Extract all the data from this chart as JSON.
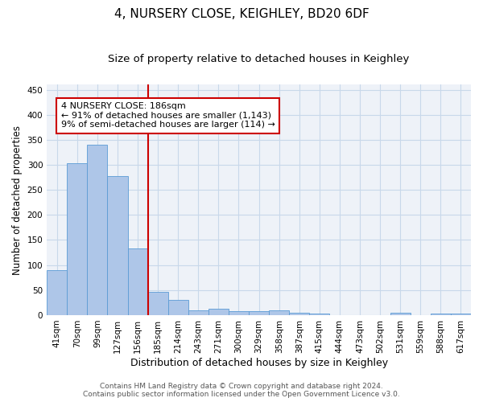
{
  "title": "4, NURSERY CLOSE, KEIGHLEY, BD20 6DF",
  "subtitle": "Size of property relative to detached houses in Keighley",
  "xlabel": "Distribution of detached houses by size in Keighley",
  "ylabel": "Number of detached properties",
  "categories": [
    "41sqm",
    "70sqm",
    "99sqm",
    "127sqm",
    "156sqm",
    "185sqm",
    "214sqm",
    "243sqm",
    "271sqm",
    "300sqm",
    "329sqm",
    "358sqm",
    "387sqm",
    "415sqm",
    "444sqm",
    "473sqm",
    "502sqm",
    "531sqm",
    "559sqm",
    "588sqm",
    "617sqm"
  ],
  "values": [
    90,
    303,
    340,
    278,
    133,
    47,
    30,
    10,
    13,
    8,
    8,
    10,
    5,
    3,
    0,
    0,
    0,
    5,
    0,
    3,
    3
  ],
  "bar_color": "#aec6e8",
  "bar_edge_color": "#5b9bd5",
  "grid_color": "#c8d8ea",
  "vline_color": "#cc0000",
  "annotation_text": "4 NURSERY CLOSE: 186sqm\n← 91% of detached houses are smaller (1,143)\n9% of semi-detached houses are larger (114) →",
  "annotation_box_color": "#cc0000",
  "ylim": [
    0,
    460
  ],
  "yticks": [
    0,
    50,
    100,
    150,
    200,
    250,
    300,
    350,
    400,
    450
  ],
  "footer_line1": "Contains HM Land Registry data © Crown copyright and database right 2024.",
  "footer_line2": "Contains public sector information licensed under the Open Government Licence v3.0.",
  "title_fontsize": 11,
  "subtitle_fontsize": 9.5,
  "xlabel_fontsize": 9,
  "ylabel_fontsize": 8.5,
  "tick_fontsize": 7.5,
  "annotation_fontsize": 8,
  "footer_fontsize": 6.5,
  "bg_color": "#eef2f8"
}
